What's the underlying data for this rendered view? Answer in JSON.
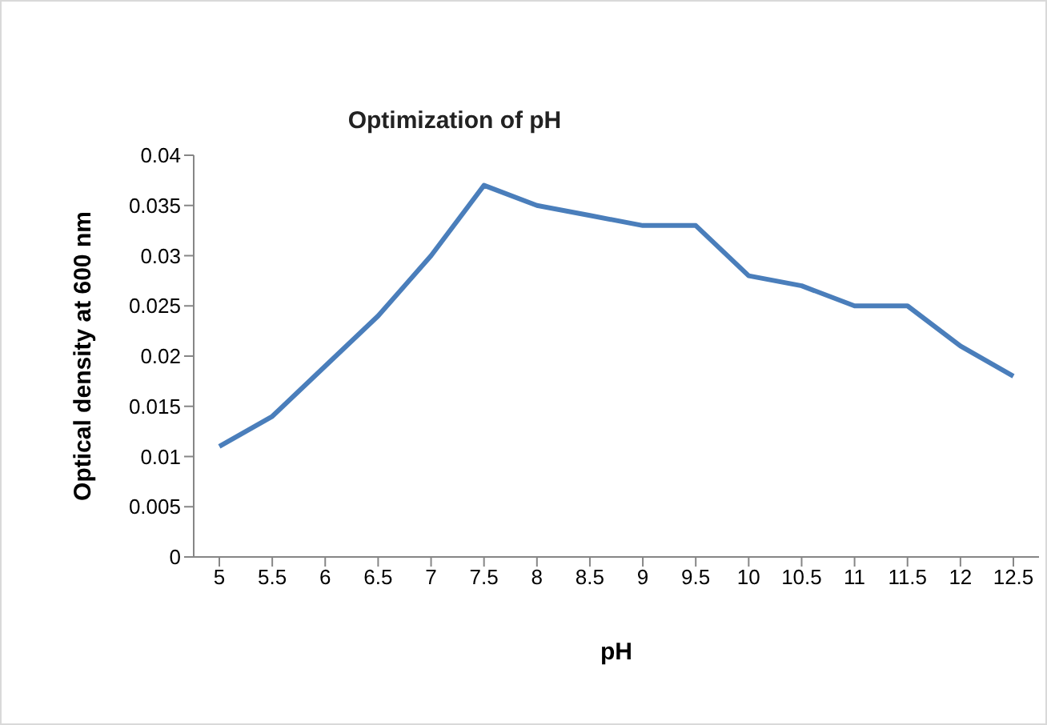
{
  "chart_data": {
    "type": "line",
    "title": "Optimization of pH",
    "xlabel": "pH",
    "ylabel": "Optical density at 600 nm",
    "categories": [
      "5",
      "5.5",
      "6",
      "6.5",
      "7",
      "7.5",
      "8",
      "8.5",
      "9",
      "9.5",
      "10",
      "10.5",
      "11",
      "11.5",
      "12",
      "12.5"
    ],
    "series": [
      {
        "color": "#4a7ebb",
        "values": [
          0.011,
          0.014,
          0.019,
          0.024,
          0.03,
          0.037,
          0.035,
          0.034,
          0.033,
          0.033,
          0.028,
          0.027,
          0.025,
          0.025,
          0.021,
          0.018
        ]
      }
    ],
    "ylim": [
      0,
      0.04
    ],
    "yticks": [
      0,
      0.005,
      0.01,
      0.015,
      0.02,
      0.025,
      0.03,
      0.035,
      0.04
    ],
    "marker": "none",
    "legend": false,
    "grid": false
  }
}
